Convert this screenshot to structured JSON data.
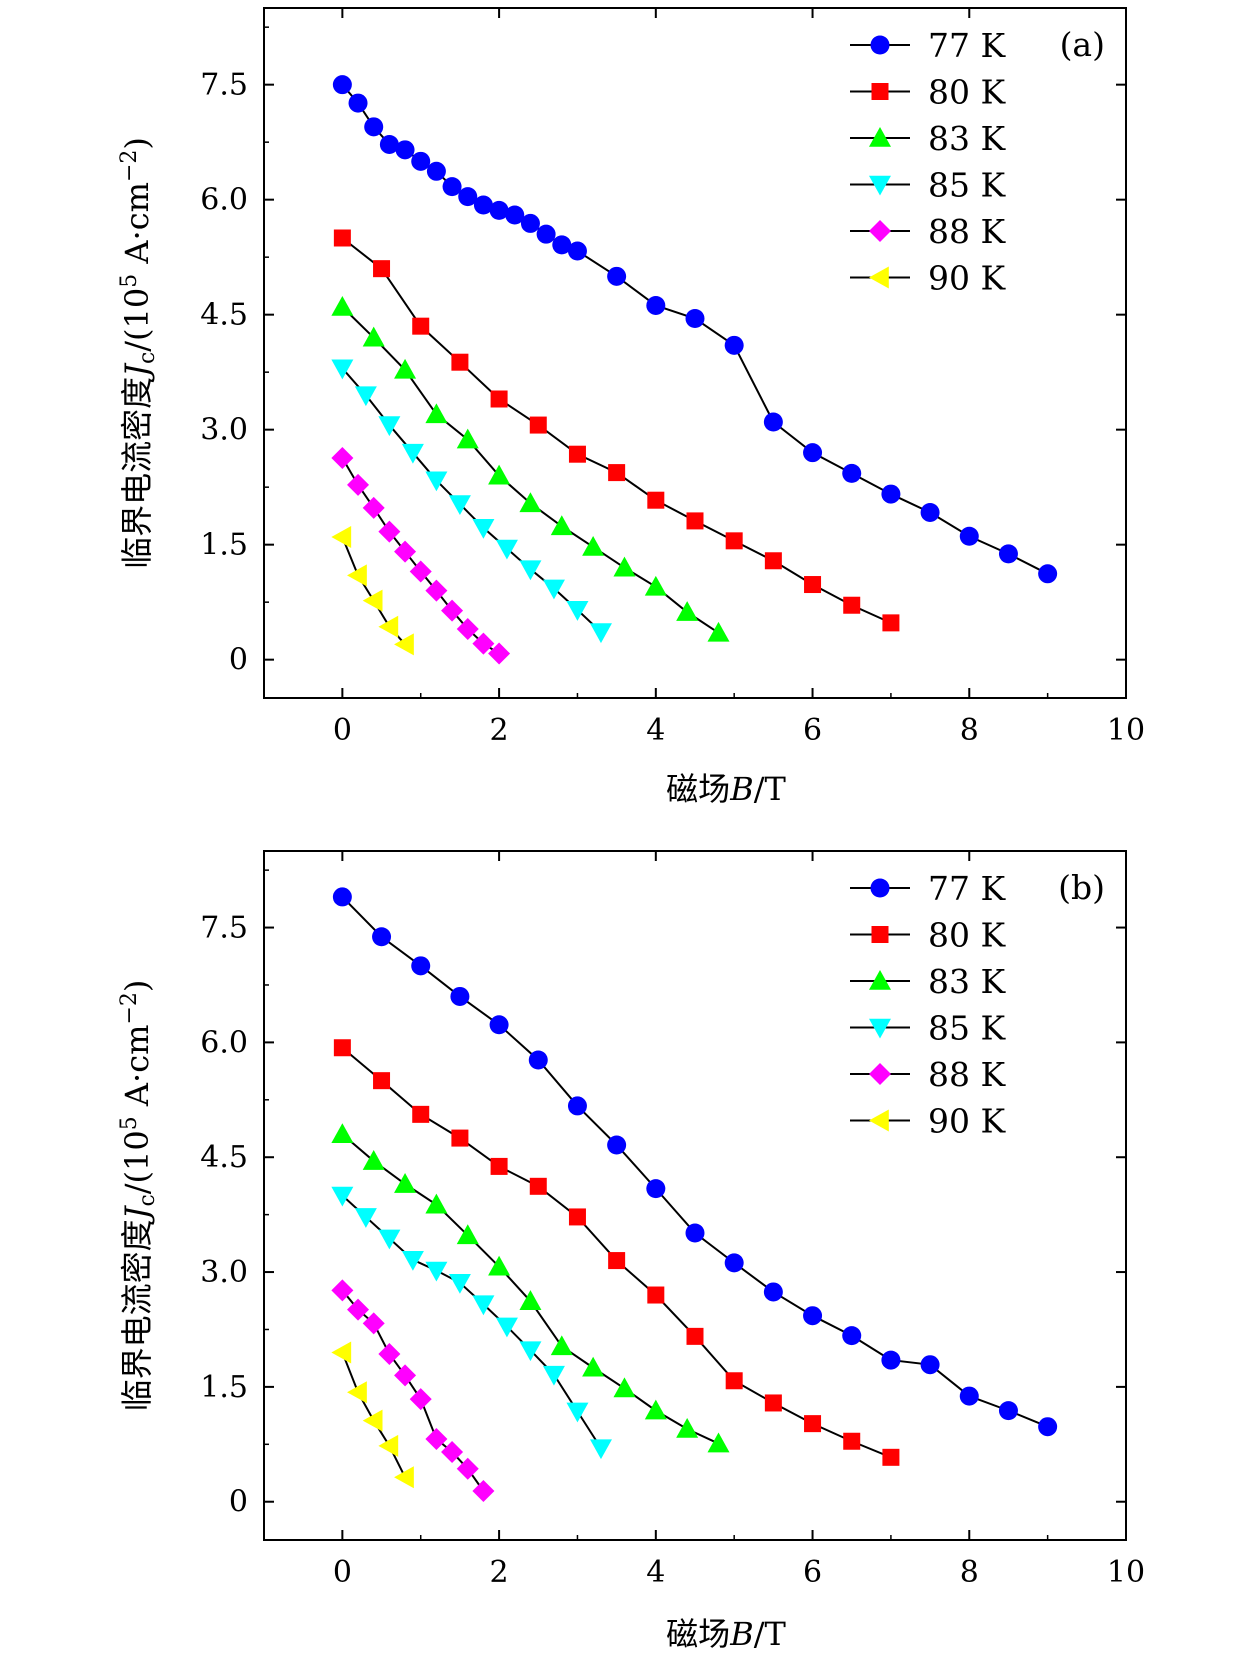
{
  "chart_data": [
    {
      "type": "line",
      "panel_label": "(a)",
      "xlabel_cn": "磁场",
      "xlabel_var": "B",
      "xlabel_unit": "/T",
      "ylabel_cn": "临界电流密度",
      "ylabel_var": "J",
      "ylabel_sub": "c",
      "ylabel_unit_pre": "/(10",
      "ylabel_unit_exp": "5",
      "ylabel_unit_mid": " A·cm",
      "ylabel_unit_exp2": "−2",
      "ylabel_unit_post": ")",
      "xlim": [
        -1,
        10
      ],
      "ylim": [
        -0.5,
        8.5
      ],
      "xticks": [
        0,
        2,
        4,
        6,
        8,
        10
      ],
      "xtick_labels": [
        "0",
        "2",
        "4",
        "6",
        "8",
        "10"
      ],
      "yticks": [
        0,
        1.5,
        3.0,
        4.5,
        6.0,
        7.5
      ],
      "ytick_labels": [
        "0",
        "1.5",
        "3.0",
        "4.5",
        "6.0",
        "7.5"
      ],
      "legend_position": "top-right",
      "series": [
        {
          "name": "77 K",
          "marker": "circle",
          "color": "#0000ff",
          "x": [
            0,
            0.2,
            0.4,
            0.6,
            0.8,
            1.0,
            1.2,
            1.4,
            1.6,
            1.8,
            2.0,
            2.2,
            2.4,
            2.6,
            2.8,
            3.0,
            3.5,
            4.0,
            4.5,
            5.0,
            5.5,
            6.0,
            6.5,
            7.0,
            7.5,
            8.0,
            8.5,
            9.0
          ],
          "y": [
            7.5,
            7.26,
            6.95,
            6.72,
            6.65,
            6.5,
            6.37,
            6.17,
            6.04,
            5.93,
            5.86,
            5.8,
            5.69,
            5.55,
            5.41,
            5.33,
            5.0,
            4.62,
            4.45,
            4.1,
            3.1,
            2.7,
            2.43,
            2.16,
            1.92,
            1.61,
            1.38,
            1.12
          ]
        },
        {
          "name": "80 K",
          "marker": "square",
          "color": "#ff0000",
          "x": [
            0,
            0.5,
            1.0,
            1.5,
            2.0,
            2.5,
            3.0,
            3.5,
            4.0,
            4.5,
            5.0,
            5.5,
            6.0,
            6.5,
            7.0
          ],
          "y": [
            5.5,
            5.1,
            4.35,
            3.88,
            3.4,
            3.06,
            2.68,
            2.44,
            2.08,
            1.81,
            1.55,
            1.29,
            0.98,
            0.71,
            0.48
          ]
        },
        {
          "name": "83 K",
          "marker": "triangle-up",
          "color": "#00ff00",
          "x": [
            0,
            0.4,
            0.8,
            1.2,
            1.6,
            2.0,
            2.4,
            2.8,
            3.2,
            3.6,
            4.0,
            4.4,
            4.8
          ],
          "y": [
            4.6,
            4.2,
            3.78,
            3.2,
            2.87,
            2.4,
            2.04,
            1.74,
            1.47,
            1.2,
            0.95,
            0.62,
            0.35
          ]
        },
        {
          "name": "85 K",
          "marker": "triangle-down",
          "color": "#00ffff",
          "x": [
            0,
            0.3,
            0.6,
            0.9,
            1.2,
            1.5,
            1.8,
            2.1,
            2.4,
            2.7,
            3.0,
            3.3
          ],
          "y": [
            3.8,
            3.45,
            3.06,
            2.7,
            2.34,
            2.03,
            1.72,
            1.45,
            1.18,
            0.93,
            0.65,
            0.36
          ]
        },
        {
          "name": "88 K",
          "marker": "diamond",
          "color": "#ff00ff",
          "x": [
            0,
            0.2,
            0.4,
            0.6,
            0.8,
            1.0,
            1.2,
            1.4,
            1.6,
            1.8,
            2.0
          ],
          "y": [
            2.63,
            2.28,
            1.98,
            1.67,
            1.41,
            1.15,
            0.9,
            0.64,
            0.4,
            0.21,
            0.08
          ]
        },
        {
          "name": "90 K",
          "marker": "triangle-left",
          "color": "#ffff00",
          "x": [
            0,
            0.2,
            0.4,
            0.6,
            0.8
          ],
          "y": [
            1.6,
            1.1,
            0.77,
            0.43,
            0.2
          ]
        }
      ]
    },
    {
      "type": "line",
      "panel_label": "(b)",
      "xlabel_cn": "磁场",
      "xlabel_var": "B",
      "xlabel_unit": "/T",
      "ylabel_cn": "临界电流密度",
      "ylabel_var": "J",
      "ylabel_sub": "c",
      "ylabel_unit_pre": "/(10",
      "ylabel_unit_exp": "5",
      "ylabel_unit_mid": " A·cm",
      "ylabel_unit_exp2": "−2",
      "ylabel_unit_post": ")",
      "xlim": [
        -1,
        10
      ],
      "ylim": [
        -0.5,
        8.5
      ],
      "xticks": [
        0,
        2,
        4,
        6,
        8,
        10
      ],
      "xtick_labels": [
        "0",
        "2",
        "4",
        "6",
        "8",
        "10"
      ],
      "yticks": [
        0,
        1.5,
        3.0,
        4.5,
        6.0,
        7.5
      ],
      "ytick_labels": [
        "0",
        "1.5",
        "3.0",
        "4.5",
        "6.0",
        "7.5"
      ],
      "legend_position": "top-right",
      "series": [
        {
          "name": "77 K",
          "marker": "circle",
          "color": "#0000ff",
          "x": [
            0,
            0.5,
            1.0,
            1.5,
            2.0,
            2.5,
            3.0,
            3.5,
            4.0,
            4.5,
            5.0,
            5.5,
            6.0,
            6.5,
            7.0,
            7.5,
            8.0,
            8.5,
            9.0
          ],
          "y": [
            7.9,
            7.38,
            7.0,
            6.6,
            6.23,
            5.77,
            5.17,
            4.66,
            4.09,
            3.51,
            3.12,
            2.74,
            2.43,
            2.17,
            1.85,
            1.79,
            1.38,
            1.19,
            0.98
          ]
        },
        {
          "name": "80 K",
          "marker": "square",
          "color": "#ff0000",
          "x": [
            0,
            0.5,
            1.0,
            1.5,
            2.0,
            2.5,
            3.0,
            3.5,
            4.0,
            4.5,
            5.0,
            5.5,
            6.0,
            6.5,
            7.0
          ],
          "y": [
            5.93,
            5.5,
            5.06,
            4.75,
            4.38,
            4.12,
            3.72,
            3.15,
            2.7,
            2.16,
            1.58,
            1.29,
            1.02,
            0.79,
            0.58
          ]
        },
        {
          "name": "83 K",
          "marker": "triangle-up",
          "color": "#00ff00",
          "x": [
            0,
            0.4,
            0.8,
            1.2,
            1.6,
            2.0,
            2.4,
            2.8,
            3.2,
            3.6,
            4.0,
            4.4,
            4.8
          ],
          "y": [
            4.8,
            4.45,
            4.15,
            3.88,
            3.48,
            3.07,
            2.62,
            2.03,
            1.75,
            1.48,
            1.19,
            0.95,
            0.76
          ]
        },
        {
          "name": "85 K",
          "marker": "triangle-down",
          "color": "#00ffff",
          "x": [
            0,
            0.3,
            0.6,
            0.9,
            1.2,
            1.5,
            1.8,
            2.1,
            2.4,
            2.7,
            3.0,
            3.3
          ],
          "y": [
            4.0,
            3.72,
            3.44,
            3.16,
            3.02,
            2.86,
            2.58,
            2.29,
            1.98,
            1.66,
            1.18,
            0.7
          ]
        },
        {
          "name": "88 K",
          "marker": "diamond",
          "color": "#ff00ff",
          "x": [
            0,
            0.2,
            0.4,
            0.6,
            0.8,
            1.0,
            1.2,
            1.4,
            1.6,
            1.8
          ],
          "y": [
            2.76,
            2.51,
            2.33,
            1.93,
            1.65,
            1.34,
            0.82,
            0.65,
            0.43,
            0.14
          ]
        },
        {
          "name": "90 K",
          "marker": "triangle-left",
          "color": "#ffff00",
          "x": [
            0,
            0.2,
            0.4,
            0.6,
            0.8
          ],
          "y": [
            1.95,
            1.43,
            1.06,
            0.73,
            0.32
          ]
        }
      ]
    }
  ]
}
